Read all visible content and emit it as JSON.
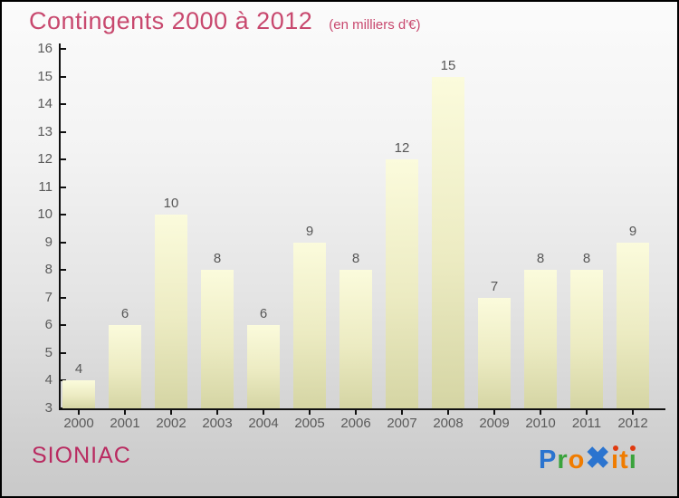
{
  "header": {
    "title": "Contingents 2000 à 2012",
    "subtitle": "(en milliers d'€)"
  },
  "footer": {
    "place": "SIONIAC",
    "logo_letters": [
      {
        "ch": "P",
        "color": "#2b74cf"
      },
      {
        "ch": "r",
        "color": "#3aa33c"
      },
      {
        "ch": "o",
        "color": "#f07c00"
      },
      {
        "ch": "✖",
        "color": "#2b74cf",
        "big": true
      },
      {
        "ch": "ı",
        "color": "#f07c00",
        "dot": "#e03a10"
      },
      {
        "ch": "t",
        "color": "#f07c00"
      },
      {
        "ch": "ı",
        "color": "#3aa33c",
        "dot": "#e03a10"
      }
    ]
  },
  "colors": {
    "title_pink": "#c8486e",
    "place_pink": "#b92a60",
    "bar_top": "#fbfbdc",
    "bar_bottom": "#d5d5a4",
    "axis": "#111111",
    "label_gray": "#5a5a5a"
  },
  "chart_data": {
    "type": "bar",
    "title": "Contingents 2000 à 2012",
    "subtitle": "(en milliers d'€)",
    "categories": [
      "2000",
      "2001",
      "2002",
      "2003",
      "2004",
      "2005",
      "2006",
      "2007",
      "2008",
      "2009",
      "2010",
      "2011",
      "2012"
    ],
    "values": [
      4,
      6,
      10,
      8,
      6,
      9,
      8,
      12,
      15,
      7,
      8,
      8,
      9
    ],
    "xlabel": "",
    "ylabel": "",
    "ylim": [
      3,
      16
    ],
    "ytick_step": 1,
    "grid": false,
    "legend": false
  }
}
